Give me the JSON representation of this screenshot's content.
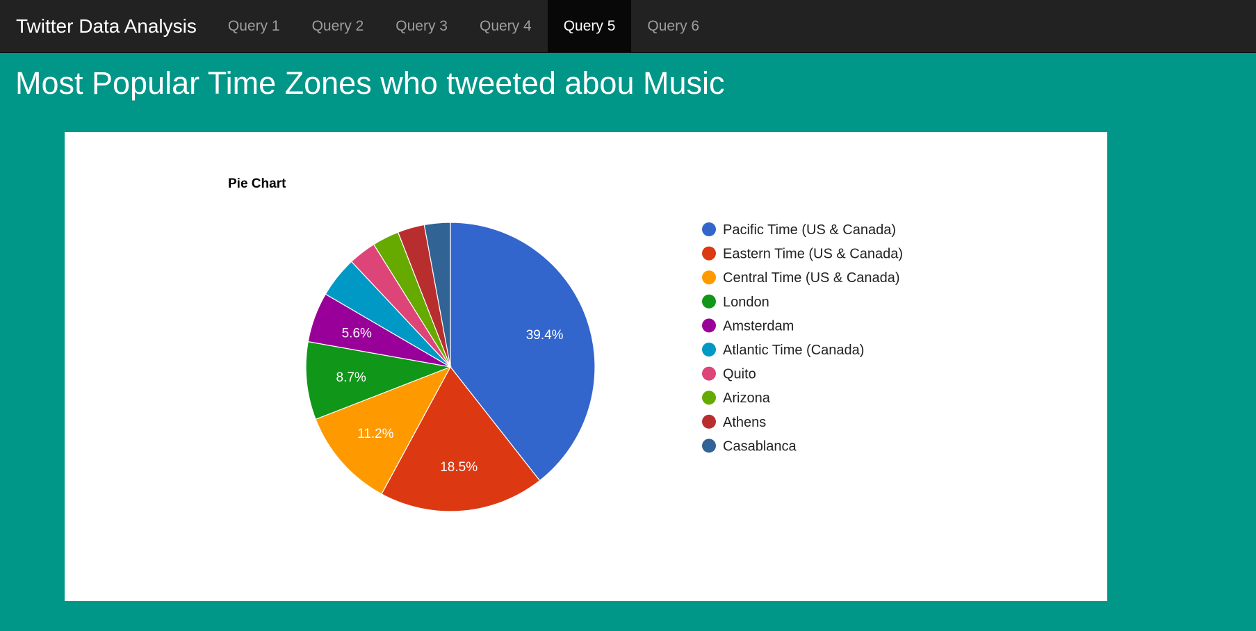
{
  "navbar": {
    "brand": "Twitter Data Analysis",
    "items": [
      {
        "label": "Query 1",
        "active": false
      },
      {
        "label": "Query 2",
        "active": false
      },
      {
        "label": "Query 3",
        "active": false
      },
      {
        "label": "Query 4",
        "active": false
      },
      {
        "label": "Query 5",
        "active": true
      },
      {
        "label": "Query 6",
        "active": false
      }
    ]
  },
  "page": {
    "title": "Most Popular Time Zones who tweeted abou Music"
  },
  "colors": {
    "page_background": "#009688",
    "navbar_background": "#222222"
  },
  "chart_data": {
    "type": "pie",
    "title": "Pie Chart",
    "legend_position": "right",
    "series": [
      {
        "name": "Pacific Time (US & Canada)",
        "value": 39.4,
        "label": "39.4%",
        "color": "#3366cc"
      },
      {
        "name": "Eastern Time (US & Canada)",
        "value": 18.5,
        "label": "18.5%",
        "color": "#dc3912"
      },
      {
        "name": "Central Time (US & Canada)",
        "value": 11.2,
        "label": "11.2%",
        "color": "#ff9900"
      },
      {
        "name": "London",
        "value": 8.7,
        "label": "8.7%",
        "color": "#109618"
      },
      {
        "name": "Amsterdam",
        "value": 5.6,
        "label": "5.6%",
        "color": "#990099"
      },
      {
        "name": "Atlantic Time (Canada)",
        "value": 4.6,
        "label": "",
        "color": "#0099c6"
      },
      {
        "name": "Quito",
        "value": 3.1,
        "label": "",
        "color": "#dd4477"
      },
      {
        "name": "Arizona",
        "value": 3.0,
        "label": "",
        "color": "#66aa00"
      },
      {
        "name": "Athens",
        "value": 3.0,
        "label": "",
        "color": "#b82e2e"
      },
      {
        "name": "Casablanca",
        "value": 2.9,
        "label": "",
        "color": "#316395"
      }
    ]
  }
}
